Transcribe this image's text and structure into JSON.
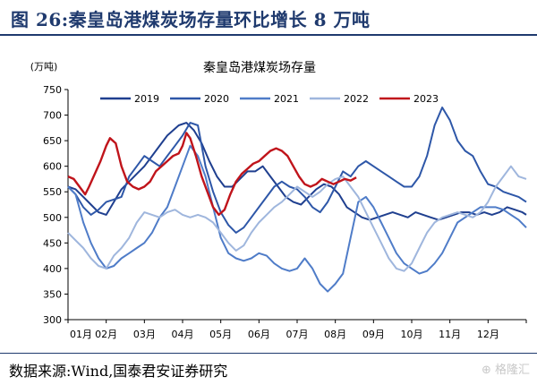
{
  "figure_label": "图 26:秦皇岛港煤炭场存量环比增长 8 万吨",
  "source": "数据来源:Wind,国泰君安证券研究",
  "watermark": "格隆汇",
  "colors": {
    "2019": "#1f3f8f",
    "2020": "#2e57a8",
    "2021": "#4f7cc8",
    "2022": "#9fb6dd",
    "2023": "#c0141b",
    "axis": "#000000",
    "title_text": "#1f3a6e"
  },
  "chart_data": {
    "type": "line",
    "title": "秦皇岛港煤炭场存量",
    "ylabel": "(万吨)",
    "xlabel": "",
    "ylim": [
      300,
      750
    ],
    "yticks": [
      300,
      350,
      400,
      450,
      500,
      550,
      600,
      650,
      700,
      750
    ],
    "xlim": [
      0,
      12
    ],
    "xticks": [
      "01月",
      "02月",
      "03月",
      "04月",
      "05月",
      "06月",
      "07月",
      "08月",
      "09月",
      "10月",
      "11月",
      "12月"
    ],
    "grid": false,
    "legend_position": "top",
    "series": [
      {
        "name": "2019",
        "points": [
          [
            0,
            560
          ],
          [
            0.2,
            555
          ],
          [
            0.4,
            540
          ],
          [
            0.6,
            525
          ],
          [
            0.8,
            510
          ],
          [
            1.0,
            505
          ],
          [
            1.2,
            530
          ],
          [
            1.4,
            555
          ],
          [
            1.6,
            570
          ],
          [
            1.8,
            585
          ],
          [
            2.0,
            600
          ],
          [
            2.3,
            630
          ],
          [
            2.6,
            660
          ],
          [
            2.9,
            680
          ],
          [
            3.1,
            685
          ],
          [
            3.3,
            670
          ],
          [
            3.5,
            645
          ],
          [
            3.7,
            610
          ],
          [
            3.9,
            580
          ],
          [
            4.1,
            560
          ],
          [
            4.3,
            560
          ],
          [
            4.5,
            575
          ],
          [
            4.7,
            590
          ],
          [
            4.9,
            590
          ],
          [
            5.1,
            600
          ],
          [
            5.3,
            580
          ],
          [
            5.5,
            560
          ],
          [
            5.7,
            540
          ],
          [
            5.9,
            530
          ],
          [
            6.1,
            525
          ],
          [
            6.3,
            540
          ],
          [
            6.5,
            555
          ],
          [
            6.7,
            565
          ],
          [
            6.9,
            560
          ],
          [
            7.1,
            545
          ],
          [
            7.3,
            520
          ],
          [
            7.5,
            510
          ],
          [
            7.7,
            500
          ],
          [
            7.9,
            495
          ],
          [
            8.1,
            500
          ],
          [
            8.3,
            505
          ],
          [
            8.5,
            510
          ],
          [
            8.7,
            505
          ],
          [
            8.9,
            500
          ],
          [
            9.1,
            510
          ],
          [
            9.3,
            505
          ],
          [
            9.5,
            500
          ],
          [
            9.7,
            495
          ],
          [
            9.9,
            500
          ],
          [
            10.1,
            505
          ],
          [
            10.3,
            510
          ],
          [
            10.5,
            510
          ],
          [
            10.7,
            505
          ],
          [
            10.9,
            510
          ],
          [
            11.1,
            505
          ],
          [
            11.3,
            510
          ],
          [
            11.5,
            520
          ],
          [
            11.7,
            515
          ],
          [
            11.9,
            510
          ],
          [
            12.0,
            505
          ]
        ]
      },
      {
        "name": "2020",
        "points": [
          [
            0,
            560
          ],
          [
            0.2,
            545
          ],
          [
            0.4,
            520
          ],
          [
            0.6,
            505
          ],
          [
            0.8,
            515
          ],
          [
            1.0,
            530
          ],
          [
            1.2,
            535
          ],
          [
            1.4,
            540
          ],
          [
            1.6,
            580
          ],
          [
            1.8,
            600
          ],
          [
            2.0,
            620
          ],
          [
            2.2,
            610
          ],
          [
            2.4,
            600
          ],
          [
            2.6,
            620
          ],
          [
            2.8,
            640
          ],
          [
            3.0,
            660
          ],
          [
            3.2,
            685
          ],
          [
            3.4,
            680
          ],
          [
            3.6,
            600
          ],
          [
            3.8,
            550
          ],
          [
            4.0,
            510
          ],
          [
            4.2,
            485
          ],
          [
            4.4,
            470
          ],
          [
            4.6,
            480
          ],
          [
            4.8,
            500
          ],
          [
            5.0,
            520
          ],
          [
            5.2,
            540
          ],
          [
            5.4,
            560
          ],
          [
            5.6,
            570
          ],
          [
            5.8,
            560
          ],
          [
            6.0,
            555
          ],
          [
            6.2,
            540
          ],
          [
            6.4,
            520
          ],
          [
            6.6,
            510
          ],
          [
            6.8,
            530
          ],
          [
            7.0,
            560
          ],
          [
            7.2,
            590
          ],
          [
            7.4,
            580
          ],
          [
            7.6,
            600
          ],
          [
            7.8,
            610
          ],
          [
            8.0,
            600
          ],
          [
            8.2,
            590
          ],
          [
            8.4,
            580
          ],
          [
            8.6,
            570
          ],
          [
            8.8,
            560
          ],
          [
            9.0,
            560
          ],
          [
            9.2,
            580
          ],
          [
            9.4,
            620
          ],
          [
            9.6,
            680
          ],
          [
            9.8,
            715
          ],
          [
            10.0,
            690
          ],
          [
            10.2,
            650
          ],
          [
            10.4,
            630
          ],
          [
            10.6,
            620
          ],
          [
            10.8,
            590
          ],
          [
            11.0,
            565
          ],
          [
            11.2,
            560
          ],
          [
            11.4,
            550
          ],
          [
            11.6,
            545
          ],
          [
            11.8,
            540
          ],
          [
            12.0,
            530
          ]
        ]
      },
      {
        "name": "2021",
        "points": [
          [
            0,
            560
          ],
          [
            0.2,
            545
          ],
          [
            0.4,
            490
          ],
          [
            0.6,
            450
          ],
          [
            0.8,
            420
          ],
          [
            1.0,
            400
          ],
          [
            1.2,
            405
          ],
          [
            1.4,
            420
          ],
          [
            1.6,
            430
          ],
          [
            1.8,
            440
          ],
          [
            2.0,
            450
          ],
          [
            2.2,
            470
          ],
          [
            2.4,
            500
          ],
          [
            2.6,
            520
          ],
          [
            2.8,
            560
          ],
          [
            3.0,
            600
          ],
          [
            3.2,
            640
          ],
          [
            3.4,
            620
          ],
          [
            3.6,
            580
          ],
          [
            3.8,
            520
          ],
          [
            4.0,
            460
          ],
          [
            4.2,
            430
          ],
          [
            4.4,
            420
          ],
          [
            4.6,
            415
          ],
          [
            4.8,
            420
          ],
          [
            5.0,
            430
          ],
          [
            5.2,
            425
          ],
          [
            5.4,
            410
          ],
          [
            5.6,
            400
          ],
          [
            5.8,
            395
          ],
          [
            6.0,
            400
          ],
          [
            6.2,
            420
          ],
          [
            6.4,
            400
          ],
          [
            6.6,
            370
          ],
          [
            6.8,
            355
          ],
          [
            7.0,
            370
          ],
          [
            7.2,
            390
          ],
          [
            7.4,
            460
          ],
          [
            7.6,
            530
          ],
          [
            7.8,
            540
          ],
          [
            8.0,
            520
          ],
          [
            8.2,
            490
          ],
          [
            8.4,
            460
          ],
          [
            8.6,
            430
          ],
          [
            8.8,
            410
          ],
          [
            9.0,
            400
          ],
          [
            9.2,
            390
          ],
          [
            9.4,
            395
          ],
          [
            9.6,
            410
          ],
          [
            9.8,
            430
          ],
          [
            10.0,
            460
          ],
          [
            10.2,
            490
          ],
          [
            10.4,
            500
          ],
          [
            10.6,
            510
          ],
          [
            10.8,
            520
          ],
          [
            11.0,
            520
          ],
          [
            11.2,
            520
          ],
          [
            11.4,
            515
          ],
          [
            11.6,
            505
          ],
          [
            11.8,
            495
          ],
          [
            12.0,
            480
          ]
        ]
      },
      {
        "name": "2022",
        "points": [
          [
            0,
            470
          ],
          [
            0.2,
            455
          ],
          [
            0.4,
            440
          ],
          [
            0.6,
            420
          ],
          [
            0.8,
            405
          ],
          [
            1.0,
            400
          ],
          [
            1.2,
            425
          ],
          [
            1.4,
            440
          ],
          [
            1.6,
            460
          ],
          [
            1.8,
            490
          ],
          [
            2.0,
            510
          ],
          [
            2.2,
            505
          ],
          [
            2.4,
            500
          ],
          [
            2.6,
            510
          ],
          [
            2.8,
            515
          ],
          [
            3.0,
            505
          ],
          [
            3.2,
            500
          ],
          [
            3.4,
            505
          ],
          [
            3.6,
            500
          ],
          [
            3.8,
            490
          ],
          [
            4.0,
            470
          ],
          [
            4.2,
            450
          ],
          [
            4.4,
            435
          ],
          [
            4.6,
            445
          ],
          [
            4.8,
            470
          ],
          [
            5.0,
            490
          ],
          [
            5.2,
            505
          ],
          [
            5.4,
            520
          ],
          [
            5.6,
            530
          ],
          [
            5.8,
            545
          ],
          [
            6.0,
            560
          ],
          [
            6.2,
            550
          ],
          [
            6.4,
            540
          ],
          [
            6.6,
            550
          ],
          [
            6.8,
            565
          ],
          [
            7.0,
            575
          ],
          [
            7.2,
            580
          ],
          [
            7.4,
            560
          ],
          [
            7.6,
            540
          ],
          [
            7.8,
            510
          ],
          [
            8.0,
            480
          ],
          [
            8.2,
            450
          ],
          [
            8.4,
            420
          ],
          [
            8.6,
            400
          ],
          [
            8.8,
            395
          ],
          [
            9.0,
            410
          ],
          [
            9.2,
            440
          ],
          [
            9.4,
            470
          ],
          [
            9.6,
            490
          ],
          [
            9.8,
            500
          ],
          [
            10.0,
            505
          ],
          [
            10.2,
            510
          ],
          [
            10.4,
            505
          ],
          [
            10.6,
            500
          ],
          [
            10.8,
            510
          ],
          [
            11.0,
            530
          ],
          [
            11.2,
            560
          ],
          [
            11.4,
            580
          ],
          [
            11.6,
            600
          ],
          [
            11.8,
            580
          ],
          [
            12.0,
            575
          ]
        ]
      },
      {
        "name": "2023",
        "points": [
          [
            0,
            580
          ],
          [
            0.15,
            575
          ],
          [
            0.3,
            560
          ],
          [
            0.45,
            545
          ],
          [
            0.55,
            560
          ],
          [
            0.7,
            585
          ],
          [
            0.85,
            610
          ],
          [
            1.0,
            640
          ],
          [
            1.1,
            655
          ],
          [
            1.25,
            645
          ],
          [
            1.4,
            600
          ],
          [
            1.55,
            570
          ],
          [
            1.7,
            560
          ],
          [
            1.85,
            555
          ],
          [
            2.0,
            560
          ],
          [
            2.15,
            570
          ],
          [
            2.3,
            590
          ],
          [
            2.45,
            600
          ],
          [
            2.6,
            610
          ],
          [
            2.75,
            620
          ],
          [
            2.9,
            625
          ],
          [
            3.0,
            640
          ],
          [
            3.1,
            665
          ],
          [
            3.2,
            655
          ],
          [
            3.35,
            620
          ],
          [
            3.5,
            580
          ],
          [
            3.65,
            550
          ],
          [
            3.8,
            520
          ],
          [
            3.95,
            505
          ],
          [
            4.1,
            515
          ],
          [
            4.25,
            545
          ],
          [
            4.4,
            570
          ],
          [
            4.55,
            585
          ],
          [
            4.7,
            595
          ],
          [
            4.85,
            605
          ],
          [
            5.0,
            610
          ],
          [
            5.15,
            620
          ],
          [
            5.3,
            630
          ],
          [
            5.45,
            635
          ],
          [
            5.6,
            630
          ],
          [
            5.75,
            620
          ],
          [
            5.9,
            600
          ],
          [
            6.05,
            580
          ],
          [
            6.2,
            565
          ],
          [
            6.35,
            560
          ],
          [
            6.5,
            565
          ],
          [
            6.65,
            575
          ],
          [
            6.8,
            570
          ],
          [
            6.95,
            565
          ],
          [
            7.1,
            570
          ],
          [
            7.25,
            575
          ],
          [
            7.4,
            572
          ],
          [
            7.55,
            578
          ]
        ]
      }
    ]
  }
}
